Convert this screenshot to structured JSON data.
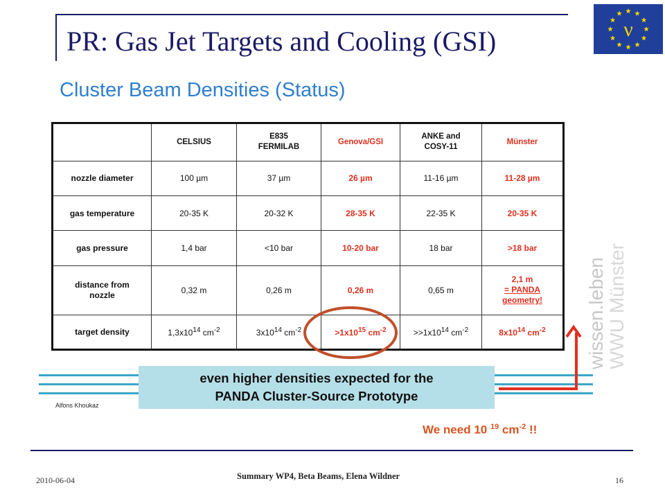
{
  "title": "PR: Gas Jet Targets and Cooling (GSI)",
  "subtitle": "Cluster Beam Densities (Status)",
  "flag": {
    "glyph": "ν",
    "background": "#1f3f9a",
    "star_color": "#f5d400"
  },
  "table": {
    "columns": [
      {
        "lines": [
          "CELSIUS"
        ],
        "highlight": false
      },
      {
        "lines": [
          "E835",
          "FERMILAB"
        ],
        "highlight": false
      },
      {
        "lines": [
          "Genova/GSI"
        ],
        "highlight": true
      },
      {
        "lines": [
          "ANKE and",
          "COSY-11"
        ],
        "highlight": false
      },
      {
        "lines": [
          "Münster"
        ],
        "highlight": true
      }
    ],
    "rows": [
      {
        "label": "nozzle diameter",
        "cells": [
          "100 µm",
          "37 µm",
          "26 µm",
          "11-16 µm",
          "11-28 µm"
        ]
      },
      {
        "label": "gas temperature",
        "cells": [
          "20-35 K",
          "20-32 K",
          "28-35 K",
          "22-35 K",
          "20-35 K"
        ]
      },
      {
        "label": "gas pressure",
        "cells": [
          "1,4 bar",
          "<10 bar",
          "10-20 bar",
          "18 bar",
          ">18 bar"
        ]
      },
      {
        "label_lines": [
          "distance from",
          "nozzle"
        ],
        "cells": [
          "0,32 m",
          "0,26 m",
          "0,26 m",
          "0,65 m"
        ],
        "last_lines": [
          "2,1 m",
          "= PANDA",
          "geometry!"
        ]
      },
      {
        "label": "target density",
        "density": [
          {
            "prefix": "1,3x10",
            "exp": "14",
            "unit": " cm",
            "uexp": "-2"
          },
          {
            "prefix": "3x10",
            "exp": "14",
            "unit": " cm",
            "uexp": "-2"
          },
          {
            "prefix": ">1x10",
            "exp": "15",
            "unit": " cm",
            "uexp": "-2"
          },
          {
            "prefix": ">>1x10",
            "exp": "14",
            "unit": " cm",
            "uexp": "-2"
          },
          {
            "prefix": "8x10",
            "exp": "14",
            "unit": " cm",
            "uexp": "-2"
          }
        ]
      }
    ]
  },
  "watermark": {
    "line1": "wissen.leben",
    "line2": "WWU Münster"
  },
  "banner": {
    "line1": "even higher densities expected for the",
    "line2": "PANDA Cluster-Source Prototype"
  },
  "author": "Alfons Khoukaz",
  "note": {
    "prefix": "We need 10 ",
    "exp": "19",
    "unit": " cm",
    "uexp": "-2",
    "suffix": " !!"
  },
  "footer": {
    "date": "2010-06-04",
    "center": "Summary WP4, Beta Beams, Elena Wildner",
    "page": "16"
  },
  "colors": {
    "title": "#1a1a66",
    "subtitle": "#2f7fd0",
    "red": "#e0301e",
    "banner": "#b5dfe8",
    "lines": "#3aa5c8",
    "note": "#d9531e"
  }
}
